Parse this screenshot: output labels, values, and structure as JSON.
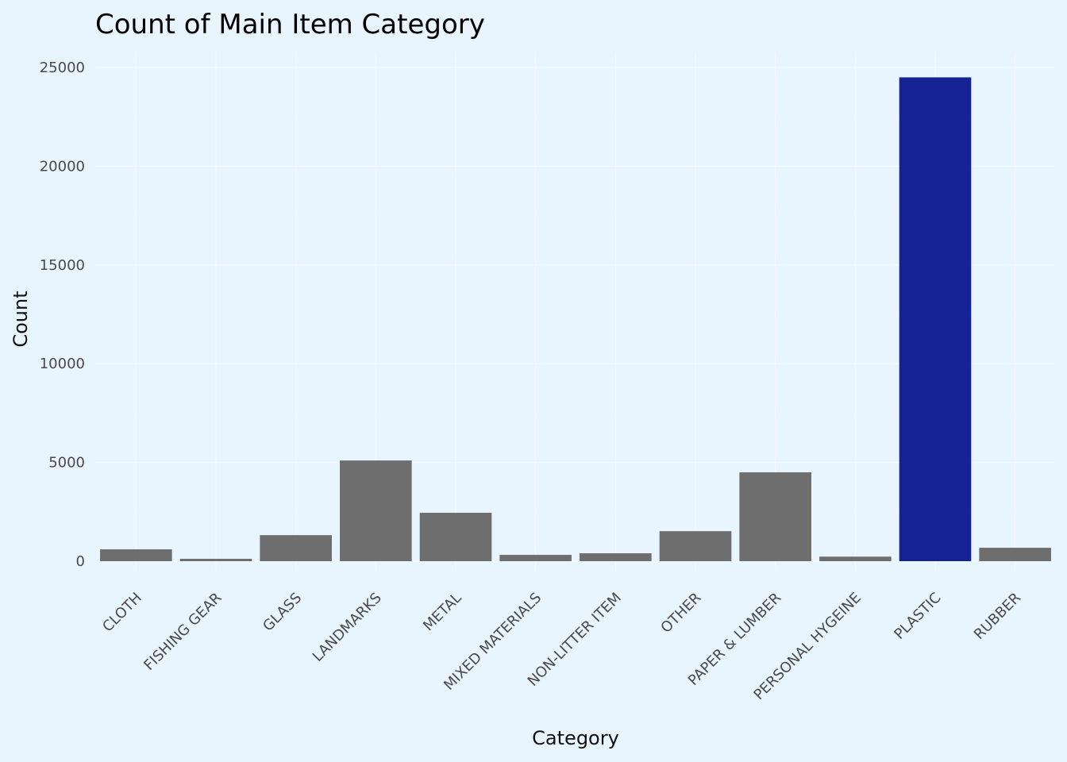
{
  "chart_data": {
    "type": "bar",
    "title": "Count of Main Item Category",
    "xlabel": "Category",
    "ylabel": "Count",
    "ylim": [
      -500,
      25700
    ],
    "yticks": [
      0,
      5000,
      10000,
      15000,
      20000,
      25000
    ],
    "grid": true,
    "legend": "none",
    "categories": [
      "CLOTH",
      "FISHING GEAR",
      "GLASS",
      "LANDMARKS",
      "METAL",
      "MIXED MATERIALS",
      "NON-LITTER ITEM",
      "OTHER",
      "PAPER & LUMBER",
      "PERSONAL HYGEINE",
      "PLASTIC",
      "RUBBER"
    ],
    "values": [
      600,
      120,
      1320,
      5100,
      2450,
      320,
      400,
      1520,
      4500,
      230,
      24500,
      680
    ],
    "colors": {
      "default_bar": "#6e6e6e",
      "highlight_bar": "#152294",
      "highlight_category": "PLASTIC",
      "background": "#e8f4fe"
    }
  }
}
